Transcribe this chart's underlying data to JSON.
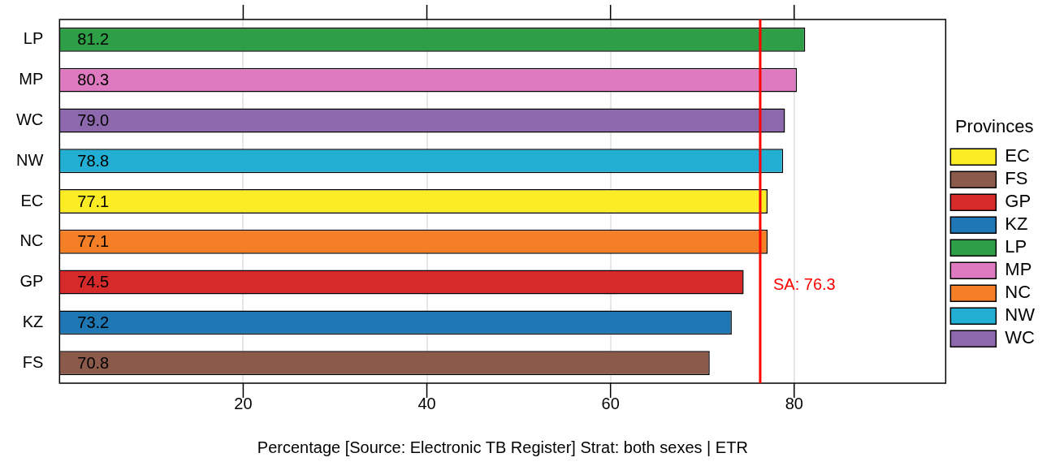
{
  "chart_data": {
    "type": "bar",
    "orientation": "horizontal",
    "xlabel": "Percentage [Source: Electronic TB Register] Strat: both sexes | ETR",
    "legend_title": "Provinces",
    "legend": "right",
    "categories": [
      "LP",
      "MP",
      "WC",
      "NW",
      "EC",
      "NC",
      "GP",
      "KZ",
      "FS"
    ],
    "series": [
      {
        "name": "EC",
        "color": "#fbec26",
        "values": [
          null,
          null,
          null,
          null,
          77.1,
          null,
          null,
          null,
          null
        ]
      },
      {
        "name": "FS",
        "color": "#8c5a4a",
        "values": [
          null,
          null,
          null,
          null,
          null,
          null,
          null,
          null,
          70.8
        ]
      },
      {
        "name": "GP",
        "color": "#d62a2a",
        "values": [
          null,
          null,
          null,
          null,
          null,
          null,
          74.5,
          null,
          null
        ]
      },
      {
        "name": "KZ",
        "color": "#1f77b4",
        "values": [
          null,
          null,
          null,
          null,
          null,
          null,
          null,
          73.2,
          null
        ]
      },
      {
        "name": "LP",
        "color": "#2e9e47",
        "values": [
          81.2,
          null,
          null,
          null,
          null,
          null,
          null,
          null,
          null
        ]
      },
      {
        "name": "MP",
        "color": "#de7bc0",
        "values": [
          null,
          80.3,
          null,
          null,
          null,
          null,
          null,
          null,
          null
        ]
      },
      {
        "name": "NC",
        "color": "#f57f26",
        "values": [
          null,
          null,
          null,
          null,
          null,
          77.1,
          null,
          null,
          null
        ]
      },
      {
        "name": "NW",
        "color": "#23afd4",
        "values": [
          null,
          null,
          null,
          78.8,
          null,
          null,
          null,
          null,
          null
        ]
      },
      {
        "name": "WC",
        "color": "#8e68ac",
        "values": [
          null,
          null,
          79.0,
          null,
          null,
          null,
          null,
          null,
          null
        ]
      }
    ],
    "value_labels": [
      "81.2",
      "80.3",
      "79.0",
      "78.8",
      "77.1",
      "77.1",
      "74.5",
      "73.2",
      "70.8"
    ],
    "xlim": [
      0,
      96.5
    ],
    "xticks": [
      20,
      40,
      60,
      80
    ],
    "grid": "x",
    "ref_lines": [
      {
        "axis": "x",
        "value": 76.3,
        "label": "SA: 76.3",
        "color": "#ff0000"
      }
    ]
  }
}
